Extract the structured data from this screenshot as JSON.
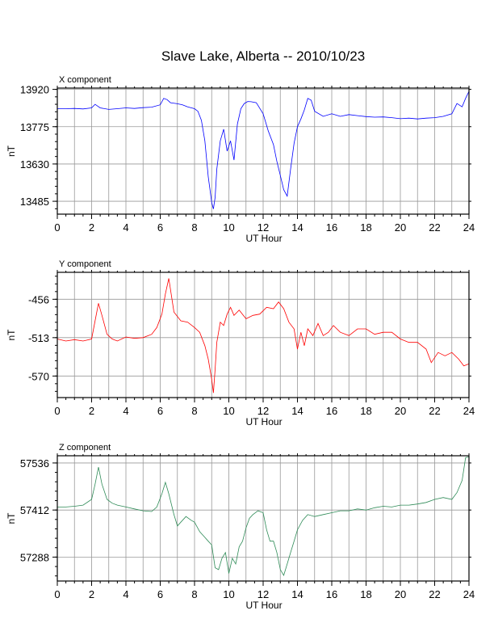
{
  "title": "Slave Lake, Alberta -- 2010/10/23",
  "chart_data": [
    {
      "type": "line",
      "panel_title": "X component",
      "color": "#0000ff",
      "xlabel": "UT Hour",
      "ylabel": "nT",
      "xlim": [
        0,
        24
      ],
      "xticks": [
        0,
        2,
        4,
        6,
        8,
        10,
        12,
        14,
        16,
        18,
        20,
        22,
        24
      ],
      "ylim": [
        13435,
        13925
      ],
      "yticks": [
        13485,
        13630,
        13775,
        13920
      ],
      "grid": true,
      "series": [
        {
          "x": [
            0,
            0.5,
            1,
            1.5,
            2,
            2.2,
            2.5,
            3,
            3.5,
            4,
            4.5,
            5,
            5.5,
            6,
            6.2,
            6.4,
            6.6,
            7,
            7.3,
            7.6,
            8,
            8.2,
            8.4,
            8.6,
            8.8,
            9,
            9.1,
            9.2,
            9.3,
            9.5,
            9.7,
            9.9,
            10.1,
            10.3,
            10.5,
            10.7,
            10.9,
            11.1,
            11.3,
            11.6,
            12,
            12.3,
            12.6,
            12.8,
            13,
            13.2,
            13.4,
            13.6,
            13.8,
            14,
            14.2,
            14.4,
            14.6,
            14.8,
            15,
            15.5,
            16,
            16.5,
            17,
            17.5,
            18,
            18.5,
            19,
            19.5,
            20,
            20.5,
            21,
            21.5,
            22,
            22.5,
            23,
            23.3,
            23.6,
            23.8,
            24
          ],
          "y": [
            13845,
            13845,
            13846,
            13844,
            13848,
            13862,
            13848,
            13842,
            13845,
            13848,
            13846,
            13849,
            13851,
            13860,
            13885,
            13880,
            13868,
            13864,
            13860,
            13852,
            13845,
            13835,
            13800,
            13720,
            13580,
            13480,
            13455,
            13500,
            13610,
            13720,
            13765,
            13680,
            13720,
            13645,
            13785,
            13845,
            13865,
            13873,
            13872,
            13868,
            13825,
            13758,
            13705,
            13640,
            13585,
            13530,
            13505,
            13610,
            13710,
            13775,
            13805,
            13840,
            13885,
            13878,
            13835,
            13815,
            13825,
            13815,
            13822,
            13818,
            13814,
            13812,
            13813,
            13810,
            13806,
            13808,
            13805,
            13808,
            13810,
            13815,
            13825,
            13865,
            13852,
            13885,
            13912
          ]
        }
      ]
    },
    {
      "type": "line",
      "panel_title": "Y component",
      "color": "#ff0000",
      "xlabel": "UT Hour",
      "ylabel": "nT",
      "xlim": [
        0,
        24
      ],
      "xticks": [
        0,
        2,
        4,
        6,
        8,
        10,
        12,
        14,
        16,
        18,
        20,
        22,
        24
      ],
      "ylim": [
        -602,
        -416
      ],
      "yticks": [
        -456,
        -513,
        -570
      ],
      "grid": true,
      "series": [
        {
          "x": [
            0,
            0.5,
            1,
            1.5,
            2,
            2.2,
            2.4,
            2.6,
            2.9,
            3.2,
            3.5,
            4,
            4.5,
            5,
            5.5,
            5.8,
            6.1,
            6.3,
            6.5,
            6.8,
            7.2,
            7.6,
            8,
            8.3,
            8.6,
            8.8,
            9,
            9.1,
            9.2,
            9.3,
            9.5,
            9.7,
            9.9,
            10.1,
            10.3,
            10.6,
            11,
            11.4,
            11.8,
            12.2,
            12.6,
            12.9,
            13.2,
            13.5,
            13.8,
            14,
            14.2,
            14.4,
            14.6,
            14.9,
            15.2,
            15.5,
            15.8,
            16.1,
            16.5,
            17,
            17.5,
            18,
            18.5,
            19,
            19.5,
            20,
            20.5,
            21,
            21.5,
            21.8,
            22.2,
            22.6,
            23,
            23.4,
            23.7,
            24
          ],
          "y": [
            -515,
            -518,
            -516,
            -518,
            -515,
            -488,
            -462,
            -480,
            -508,
            -515,
            -518,
            -512,
            -514,
            -513,
            -508,
            -498,
            -478,
            -448,
            -425,
            -475,
            -488,
            -490,
            -498,
            -505,
            -525,
            -545,
            -575,
            -595,
            -560,
            -520,
            -490,
            -495,
            -478,
            -468,
            -480,
            -472,
            -485,
            -480,
            -478,
            -468,
            -470,
            -460,
            -470,
            -490,
            -500,
            -530,
            -505,
            -525,
            -500,
            -510,
            -492,
            -510,
            -505,
            -495,
            -505,
            -510,
            -500,
            -500,
            -508,
            -505,
            -505,
            -515,
            -520,
            -520,
            -530,
            -550,
            -535,
            -540,
            -535,
            -545,
            -555,
            -552
          ]
        }
      ]
    },
    {
      "type": "line",
      "panel_title": "Z component",
      "color": "#2e8b57",
      "xlabel": "UT Hour",
      "ylabel": "nT",
      "xlim": [
        0,
        24
      ],
      "xticks": [
        0,
        2,
        4,
        6,
        8,
        10,
        12,
        14,
        16,
        18,
        20,
        22,
        24
      ],
      "ylim": [
        57225,
        57555
      ],
      "yticks": [
        57288,
        57412,
        57536
      ],
      "grid": true,
      "series": [
        {
          "x": [
            0,
            0.5,
            1,
            1.5,
            2,
            2.2,
            2.4,
            2.6,
            2.9,
            3.2,
            3.5,
            4,
            4.5,
            5,
            5.5,
            5.8,
            6.1,
            6.3,
            6.5,
            6.8,
            7,
            7.2,
            7.5,
            7.8,
            8,
            8.3,
            8.6,
            8.8,
            9,
            9.2,
            9.4,
            9.6,
            9.8,
            10,
            10.2,
            10.4,
            10.6,
            10.8,
            11,
            11.2,
            11.4,
            11.7,
            12,
            12.2,
            12.4,
            12.6,
            12.8,
            13,
            13.2,
            13.4,
            13.6,
            13.8,
            14,
            14.3,
            14.6,
            15,
            15.5,
            16,
            16.5,
            17,
            17.5,
            18,
            18.5,
            19,
            19.5,
            20,
            20.5,
            21,
            21.5,
            22,
            22.5,
            23,
            23.3,
            23.6,
            23.8,
            24
          ],
          "y": [
            57420,
            57420,
            57422,
            57425,
            57440,
            57480,
            57525,
            57480,
            57440,
            57430,
            57425,
            57420,
            57415,
            57410,
            57408,
            57420,
            57455,
            57485,
            57455,
            57400,
            57370,
            57380,
            57395,
            57385,
            57380,
            57355,
            57340,
            57330,
            57320,
            57260,
            57255,
            57285,
            57300,
            57245,
            57285,
            57270,
            57315,
            57330,
            57365,
            57390,
            57400,
            57410,
            57405,
            57360,
            57330,
            57330,
            57300,
            57255,
            57240,
            57270,
            57300,
            57330,
            57360,
            57385,
            57400,
            57395,
            57400,
            57405,
            57410,
            57410,
            57415,
            57412,
            57418,
            57422,
            57420,
            57425,
            57425,
            57428,
            57432,
            57440,
            57445,
            57440,
            57458,
            57490,
            57550,
            57552
          ]
        }
      ]
    }
  ]
}
